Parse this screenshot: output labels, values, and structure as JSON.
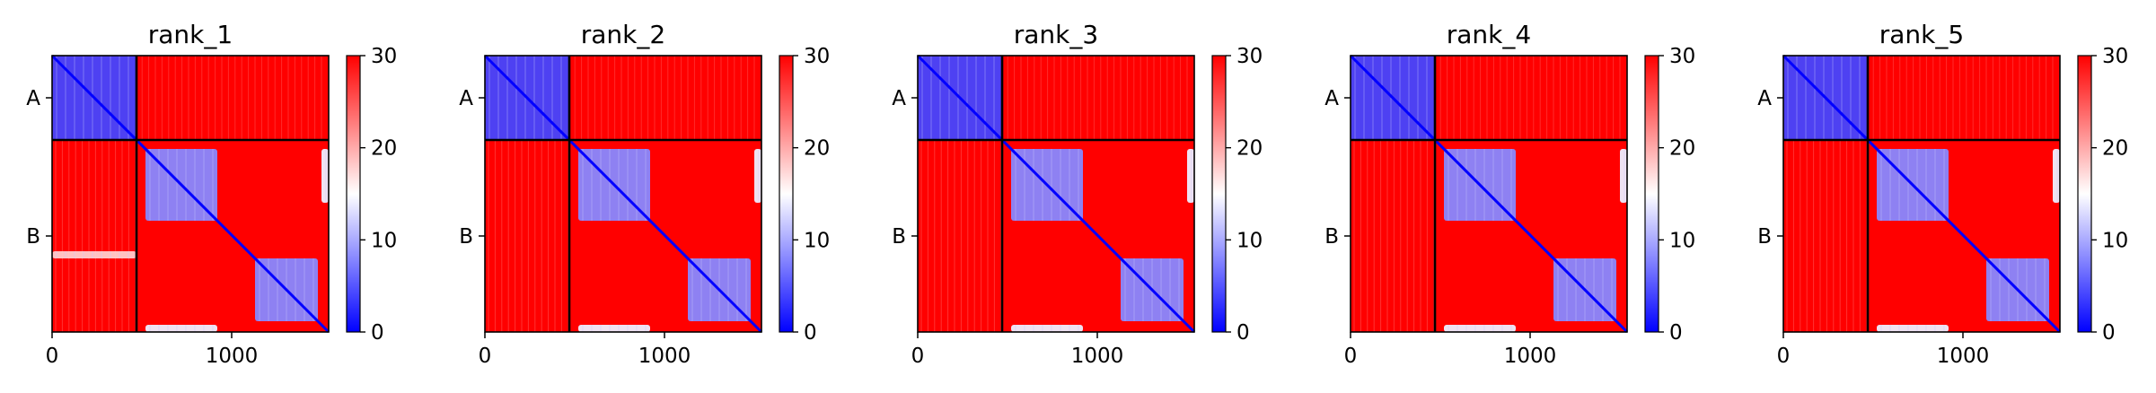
{
  "chart_data": [
    {
      "type": "heatmap",
      "title": "rank_1",
      "chains": [
        "A",
        "B"
      ],
      "chain_boundary": 470,
      "total_length": 1540,
      "x_ticks": [
        0,
        1000
      ],
      "colorbar": {
        "min": 0,
        "max": 30,
        "ticks": [
          0,
          10,
          20,
          30
        ],
        "colors": [
          "#0000ff",
          "#ffffff",
          "#ff0000"
        ]
      },
      "low_error_blocks": [
        {
          "x": [
            0,
            470
          ],
          "y": [
            0,
            470
          ],
          "value": 4
        },
        {
          "x": [
            520,
            920
          ],
          "y": [
            520,
            920
          ],
          "value": 8
        },
        {
          "x": [
            1130,
            1480
          ],
          "y": [
            1130,
            1480
          ],
          "value": 8
        },
        {
          "x": [
            1500,
            1540
          ],
          "y": [
            520,
            820
          ],
          "value": 14
        },
        {
          "x": [
            520,
            920
          ],
          "y": [
            1500,
            1540
          ],
          "value": 14
        },
        {
          "x": [
            0,
            470
          ],
          "y": [
            1090,
            1130
          ],
          "value": 18
        }
      ]
    },
    {
      "type": "heatmap",
      "title": "rank_2",
      "chains": [
        "A",
        "B"
      ],
      "chain_boundary": 470,
      "total_length": 1540,
      "x_ticks": [
        0,
        1000
      ],
      "colorbar": {
        "min": 0,
        "max": 30,
        "ticks": [
          0,
          10,
          20,
          30
        ],
        "colors": [
          "#0000ff",
          "#ffffff",
          "#ff0000"
        ]
      },
      "low_error_blocks": [
        {
          "x": [
            0,
            470
          ],
          "y": [
            0,
            470
          ],
          "value": 4
        },
        {
          "x": [
            520,
            920
          ],
          "y": [
            520,
            920
          ],
          "value": 8
        },
        {
          "x": [
            1130,
            1480
          ],
          "y": [
            1130,
            1480
          ],
          "value": 8
        },
        {
          "x": [
            1500,
            1540
          ],
          "y": [
            520,
            820
          ],
          "value": 14
        },
        {
          "x": [
            520,
            920
          ],
          "y": [
            1500,
            1540
          ],
          "value": 14
        }
      ]
    },
    {
      "type": "heatmap",
      "title": "rank_3",
      "chains": [
        "A",
        "B"
      ],
      "chain_boundary": 470,
      "total_length": 1540,
      "x_ticks": [
        0,
        1000
      ],
      "colorbar": {
        "min": 0,
        "max": 30,
        "ticks": [
          0,
          10,
          20,
          30
        ],
        "colors": [
          "#0000ff",
          "#ffffff",
          "#ff0000"
        ]
      },
      "low_error_blocks": [
        {
          "x": [
            0,
            470
          ],
          "y": [
            0,
            470
          ],
          "value": 4
        },
        {
          "x": [
            520,
            920
          ],
          "y": [
            520,
            920
          ],
          "value": 8
        },
        {
          "x": [
            1130,
            1480
          ],
          "y": [
            1130,
            1480
          ],
          "value": 8
        },
        {
          "x": [
            1500,
            1540
          ],
          "y": [
            520,
            820
          ],
          "value": 14
        },
        {
          "x": [
            520,
            920
          ],
          "y": [
            1500,
            1540
          ],
          "value": 14
        }
      ]
    },
    {
      "type": "heatmap",
      "title": "rank_4",
      "chains": [
        "A",
        "B"
      ],
      "chain_boundary": 470,
      "total_length": 1540,
      "x_ticks": [
        0,
        1000
      ],
      "colorbar": {
        "min": 0,
        "max": 30,
        "ticks": [
          0,
          10,
          20,
          30
        ],
        "colors": [
          "#0000ff",
          "#ffffff",
          "#ff0000"
        ]
      },
      "low_error_blocks": [
        {
          "x": [
            0,
            470
          ],
          "y": [
            0,
            470
          ],
          "value": 4
        },
        {
          "x": [
            520,
            920
          ],
          "y": [
            520,
            920
          ],
          "value": 8
        },
        {
          "x": [
            1130,
            1480
          ],
          "y": [
            1130,
            1480
          ],
          "value": 8
        },
        {
          "x": [
            1500,
            1540
          ],
          "y": [
            520,
            820
          ],
          "value": 14
        },
        {
          "x": [
            520,
            920
          ],
          "y": [
            1500,
            1540
          ],
          "value": 14
        }
      ]
    },
    {
      "type": "heatmap",
      "title": "rank_5",
      "chains": [
        "A",
        "B"
      ],
      "chain_boundary": 470,
      "total_length": 1540,
      "x_ticks": [
        0,
        1000
      ],
      "colorbar": {
        "min": 0,
        "max": 30,
        "ticks": [
          0,
          10,
          20,
          30
        ],
        "colors": [
          "#0000ff",
          "#ffffff",
          "#ff0000"
        ]
      },
      "low_error_blocks": [
        {
          "x": [
            0,
            470
          ],
          "y": [
            0,
            470
          ],
          "value": 4
        },
        {
          "x": [
            520,
            920
          ],
          "y": [
            520,
            920
          ],
          "value": 8
        },
        {
          "x": [
            1130,
            1480
          ],
          "y": [
            1130,
            1480
          ],
          "value": 8
        },
        {
          "x": [
            1500,
            1540
          ],
          "y": [
            520,
            820
          ],
          "value": 14
        },
        {
          "x": [
            520,
            920
          ],
          "y": [
            1500,
            1540
          ],
          "value": 14
        }
      ]
    }
  ]
}
